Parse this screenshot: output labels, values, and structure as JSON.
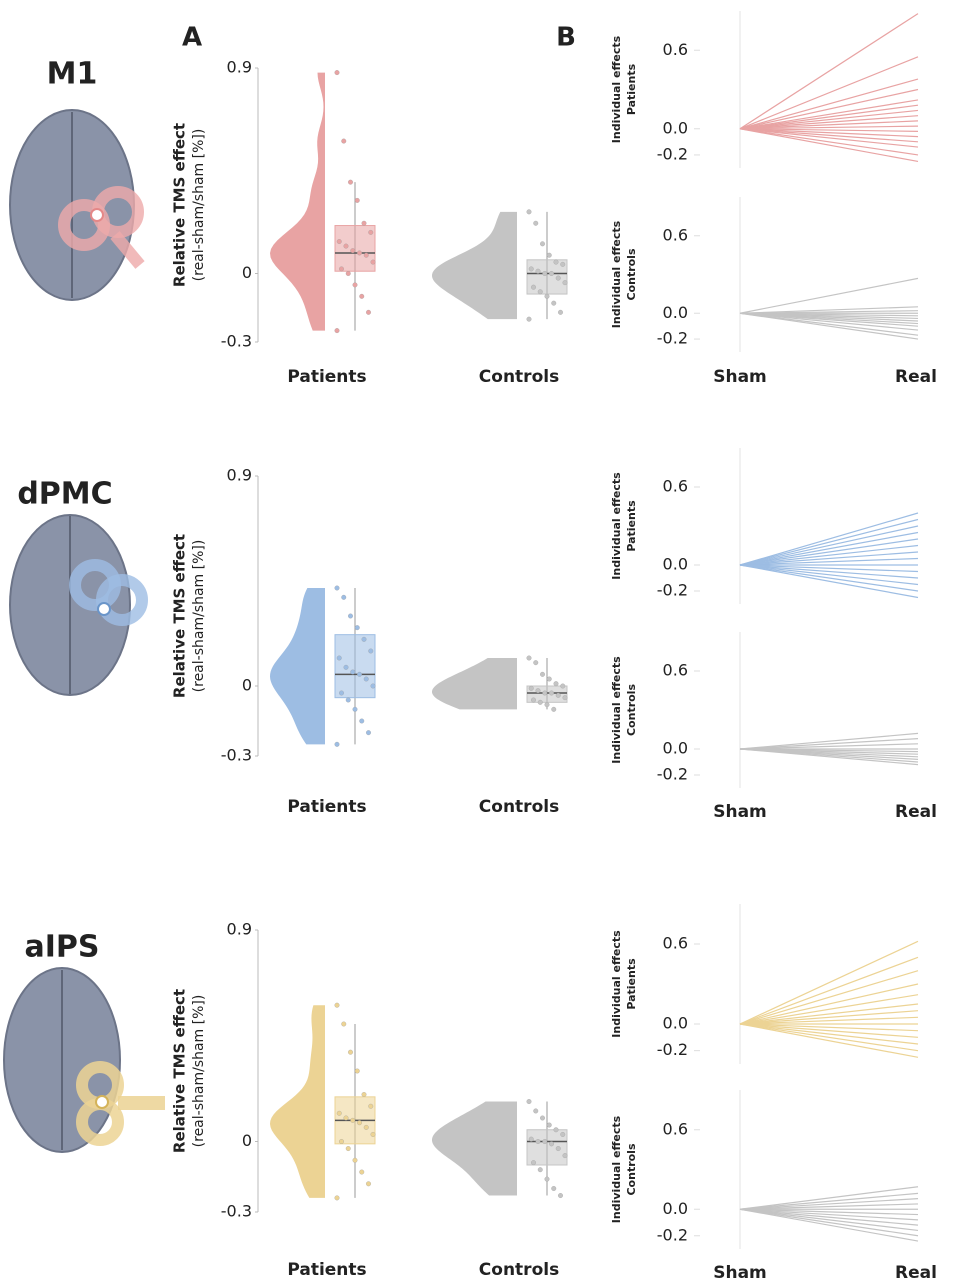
{
  "chart_data": [
    {
      "type": "raincloud",
      "title": "M1",
      "panel_label": "A",
      "y_label": "Relative TMS effect",
      "y_sublabel": "(real-sham/sham [%])",
      "ylim": [
        -0.3,
        0.9
      ],
      "yticks": [
        0.9,
        0,
        -0.3
      ],
      "categories": [
        "Patients",
        "Controls"
      ],
      "groups": [
        {
          "color": "#e8a3a3",
          "values": [
            0.88,
            0.58,
            0.4,
            0.32,
            0.22,
            0.18,
            0.14,
            0.12,
            0.1,
            0.09,
            0.08,
            0.05,
            0.02,
            0.0,
            -0.05,
            -0.1,
            -0.17,
            -0.25
          ],
          "box": {
            "min": -0.25,
            "q1": 0.01,
            "median": 0.09,
            "q3": 0.21,
            "max": 0.4
          }
        },
        {
          "color": "#c4c4c4",
          "values": [
            0.27,
            0.22,
            0.13,
            0.08,
            0.05,
            0.04,
            0.02,
            0.01,
            0,
            0,
            -0.02,
            -0.04,
            -0.06,
            -0.08,
            -0.1,
            -0.13,
            -0.17,
            -0.2
          ],
          "box": {
            "min": -0.2,
            "q1": -0.09,
            "median": 0,
            "q3": 0.06,
            "max": 0.27
          }
        }
      ]
    },
    {
      "type": "spaghetti",
      "panel_label": "B",
      "y_label": "Individual effects",
      "y_sublabel": "Patients",
      "color": "#e8a3a3",
      "ylim": [
        -0.3,
        0.9
      ],
      "yticks": [
        0.6,
        {
          "value": 0,
          "label": "0.0"
        },
        -0.2
      ],
      "sham": [
        0,
        0,
        0,
        0,
        0,
        0,
        0,
        0,
        0,
        0,
        0,
        0,
        0,
        0,
        0,
        0
      ],
      "real": [
        0.88,
        0.55,
        0.38,
        0.3,
        0.22,
        0.18,
        0.14,
        0.1,
        0.06,
        0.02,
        -0.02,
        -0.06,
        -0.1,
        -0.14,
        -0.2,
        -0.25
      ]
    },
    {
      "type": "spaghetti",
      "y_label": "Individual effects",
      "y_sublabel": "Controls",
      "color": "#c4c4c4",
      "categories": [
        "Sham",
        "Real"
      ],
      "ylim": [
        -0.3,
        0.9
      ],
      "yticks": [
        0.6,
        {
          "value": 0,
          "label": "0.0"
        },
        -0.2
      ],
      "sham": [
        0,
        0,
        0,
        0,
        0,
        0,
        0,
        0,
        0,
        0,
        0,
        0
      ],
      "real": [
        0.27,
        0.05,
        0.02,
        0,
        -0.02,
        -0.04,
        -0.06,
        -0.08,
        -0.1,
        -0.13,
        -0.17,
        -0.2
      ]
    },
    {
      "type": "raincloud",
      "title": "dPMC",
      "y_label": "Relative TMS effect",
      "y_sublabel": "(real-sham/sham [%])",
      "ylim": [
        -0.3,
        0.9
      ],
      "yticks": [
        0.9,
        0,
        -0.3
      ],
      "categories": [
        "Patients",
        "Controls"
      ],
      "groups": [
        {
          "color": "#9dbde3",
          "values": [
            0.42,
            0.38,
            0.3,
            0.25,
            0.2,
            0.15,
            0.12,
            0.08,
            0.06,
            0.05,
            0.03,
            0.0,
            -0.03,
            -0.06,
            -0.1,
            -0.15,
            -0.2,
            -0.25
          ],
          "box": {
            "min": -0.25,
            "q1": -0.05,
            "median": 0.05,
            "q3": 0.22,
            "max": 0.42
          }
        },
        {
          "color": "#c4c4c4",
          "values": [
            0.12,
            0.1,
            0.05,
            0.03,
            0.01,
            0,
            -0.01,
            -0.02,
            -0.03,
            -0.03,
            -0.04,
            -0.05,
            -0.06,
            -0.07,
            -0.08,
            -0.1
          ],
          "box": {
            "min": -0.1,
            "q1": -0.07,
            "median": -0.03,
            "q3": 0.0,
            "max": 0.12
          }
        }
      ]
    },
    {
      "type": "spaghetti",
      "y_label": "Individual effects",
      "y_sublabel": "Patients",
      "color": "#9dbde3",
      "ylim": [
        -0.3,
        0.9
      ],
      "yticks": [
        0.6,
        {
          "value": 0,
          "label": "0.0"
        },
        -0.2
      ],
      "sham": [
        0,
        0,
        0,
        0,
        0,
        0,
        0,
        0,
        0,
        0,
        0,
        0,
        0,
        0
      ],
      "real": [
        0.4,
        0.35,
        0.3,
        0.25,
        0.2,
        0.15,
        0.1,
        0.05,
        0,
        -0.05,
        -0.1,
        -0.15,
        -0.2,
        -0.25
      ]
    },
    {
      "type": "spaghetti",
      "y_label": "Individual effects",
      "y_sublabel": "Controls",
      "color": "#c4c4c4",
      "categories": [
        "Sham",
        "Real"
      ],
      "ylim": [
        -0.3,
        0.9
      ],
      "yticks": [
        0.6,
        {
          "value": 0,
          "label": "0.0"
        },
        -0.2
      ],
      "sham": [
        0,
        0,
        0,
        0,
        0,
        0,
        0,
        0,
        0,
        0
      ],
      "real": [
        0.12,
        0.08,
        0.04,
        0,
        -0.02,
        -0.04,
        -0.06,
        -0.08,
        -0.1,
        -0.12
      ]
    },
    {
      "type": "raincloud",
      "title": "aIPS",
      "y_label": "Relative TMS effect",
      "y_sublabel": "(real-sham/sham [%])",
      "ylim": [
        -0.3,
        0.9
      ],
      "yticks": [
        0.9,
        0,
        -0.3
      ],
      "categories": [
        "Patients",
        "Controls"
      ],
      "groups": [
        {
          "color": "#ecd394",
          "values": [
            0.58,
            0.5,
            0.38,
            0.3,
            0.2,
            0.15,
            0.12,
            0.1,
            0.09,
            0.08,
            0.06,
            0.03,
            0.0,
            -0.03,
            -0.08,
            -0.13,
            -0.18,
            -0.24
          ],
          "box": {
            "min": -0.24,
            "q1": -0.01,
            "median": 0.09,
            "q3": 0.19,
            "max": 0.5
          }
        },
        {
          "color": "#c4c4c4",
          "values": [
            0.17,
            0.13,
            0.1,
            0.07,
            0.05,
            0.03,
            0.01,
            0,
            0,
            -0.01,
            -0.03,
            -0.06,
            -0.09,
            -0.12,
            -0.16,
            -0.2,
            -0.23
          ],
          "box": {
            "min": -0.23,
            "q1": -0.1,
            "median": 0,
            "q3": 0.05,
            "max": 0.17
          }
        }
      ]
    },
    {
      "type": "spaghetti",
      "y_label": "Individual effects",
      "y_sublabel": "Patients",
      "color": "#ecd394",
      "ylim": [
        -0.3,
        0.9
      ],
      "yticks": [
        0.6,
        {
          "value": 0,
          "label": "0.0"
        },
        -0.2
      ],
      "sham": [
        0,
        0,
        0,
        0,
        0,
        0,
        0,
        0,
        0,
        0,
        0,
        0,
        0,
        0
      ],
      "real": [
        0.62,
        0.5,
        0.4,
        0.3,
        0.22,
        0.15,
        0.1,
        0.05,
        0,
        -0.05,
        -0.1,
        -0.15,
        -0.2,
        -0.25
      ]
    },
    {
      "type": "spaghetti",
      "y_label": "Individual effects",
      "y_sublabel": "Controls",
      "color": "#c4c4c4",
      "categories": [
        "Sham",
        "Real"
      ],
      "ylim": [
        -0.3,
        0.9
      ],
      "yticks": [
        0.6,
        {
          "value": 0,
          "label": "0.0"
        },
        -0.2
      ],
      "sham": [
        0,
        0,
        0,
        0,
        0,
        0,
        0,
        0,
        0,
        0,
        0
      ],
      "real": [
        0.17,
        0.12,
        0.08,
        0.04,
        0,
        -0.04,
        -0.08,
        -0.12,
        -0.16,
        -0.2,
        -0.24
      ]
    }
  ]
}
